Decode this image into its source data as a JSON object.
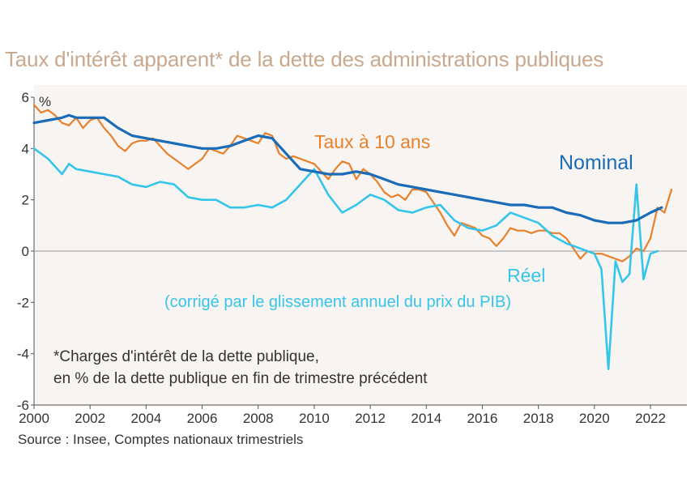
{
  "chart_data": {
    "type": "line",
    "title": "Taux d'intérêt apparent* de la dette des administrations publiques",
    "ylabel": "%",
    "ylim": [
      -6,
      6
    ],
    "xlim": [
      2000,
      2023.3
    ],
    "yticks": [
      -6,
      -4,
      -2,
      0,
      2,
      4,
      6
    ],
    "xticks": [
      2000,
      2002,
      2004,
      2006,
      2008,
      2010,
      2012,
      2014,
      2016,
      2018,
      2020,
      2022
    ],
    "footnote": [
      "*Charges d'intérêt de la dette publique,",
      "en % de la dette publique en fin de trimestre précédent"
    ],
    "source": "Source :  Insee, Comptes nationaux trimestriels",
    "colors": {
      "nominal": "#1a6bb8",
      "reel": "#35c4ea",
      "taux10": "#e8812c",
      "axis": "#555555",
      "plot_bg": "#f8f4f1"
    },
    "series": [
      {
        "name": "Taux à 10 ans",
        "label": "Taux à 10 ans",
        "color": "#e8812c",
        "points": [
          [
            2000.0,
            5.7
          ],
          [
            2000.25,
            5.4
          ],
          [
            2000.5,
            5.5
          ],
          [
            2000.75,
            5.3
          ],
          [
            2001.0,
            5.0
          ],
          [
            2001.25,
            4.9
          ],
          [
            2001.5,
            5.2
          ],
          [
            2001.75,
            4.8
          ],
          [
            2002.0,
            5.1
          ],
          [
            2002.25,
            5.2
          ],
          [
            2002.5,
            4.8
          ],
          [
            2002.75,
            4.5
          ],
          [
            2003.0,
            4.1
          ],
          [
            2003.25,
            3.9
          ],
          [
            2003.5,
            4.2
          ],
          [
            2003.75,
            4.3
          ],
          [
            2004.0,
            4.3
          ],
          [
            2004.25,
            4.4
          ],
          [
            2004.5,
            4.1
          ],
          [
            2004.75,
            3.8
          ],
          [
            2005.0,
            3.6
          ],
          [
            2005.25,
            3.4
          ],
          [
            2005.5,
            3.2
          ],
          [
            2005.75,
            3.4
          ],
          [
            2006.0,
            3.6
          ],
          [
            2006.25,
            4.0
          ],
          [
            2006.5,
            3.9
          ],
          [
            2006.75,
            3.8
          ],
          [
            2007.0,
            4.1
          ],
          [
            2007.25,
            4.5
          ],
          [
            2007.5,
            4.4
          ],
          [
            2007.75,
            4.3
          ],
          [
            2008.0,
            4.2
          ],
          [
            2008.25,
            4.6
          ],
          [
            2008.5,
            4.5
          ],
          [
            2008.75,
            3.8
          ],
          [
            2009.0,
            3.6
          ],
          [
            2009.25,
            3.7
          ],
          [
            2009.5,
            3.6
          ],
          [
            2009.75,
            3.5
          ],
          [
            2010.0,
            3.4
          ],
          [
            2010.25,
            3.1
          ],
          [
            2010.5,
            2.8
          ],
          [
            2010.75,
            3.2
          ],
          [
            2011.0,
            3.5
          ],
          [
            2011.25,
            3.4
          ],
          [
            2011.5,
            2.8
          ],
          [
            2011.75,
            3.2
          ],
          [
            2012.0,
            3.0
          ],
          [
            2012.25,
            2.7
          ],
          [
            2012.5,
            2.3
          ],
          [
            2012.75,
            2.1
          ],
          [
            2013.0,
            2.2
          ],
          [
            2013.25,
            2.0
          ],
          [
            2013.5,
            2.4
          ],
          [
            2013.75,
            2.4
          ],
          [
            2014.0,
            2.3
          ],
          [
            2014.25,
            1.9
          ],
          [
            2014.5,
            1.5
          ],
          [
            2014.75,
            1.0
          ],
          [
            2015.0,
            0.6
          ],
          [
            2015.25,
            1.1
          ],
          [
            2015.5,
            1.0
          ],
          [
            2015.75,
            0.9
          ],
          [
            2016.0,
            0.6
          ],
          [
            2016.25,
            0.5
          ],
          [
            2016.5,
            0.2
          ],
          [
            2016.75,
            0.5
          ],
          [
            2017.0,
            0.9
          ],
          [
            2017.25,
            0.8
          ],
          [
            2017.5,
            0.8
          ],
          [
            2017.75,
            0.7
          ],
          [
            2018.0,
            0.8
          ],
          [
            2018.25,
            0.8
          ],
          [
            2018.5,
            0.7
          ],
          [
            2018.75,
            0.7
          ],
          [
            2019.0,
            0.5
          ],
          [
            2019.25,
            0.1
          ],
          [
            2019.5,
            -0.3
          ],
          [
            2019.75,
            0.0
          ],
          [
            2020.0,
            -0.1
          ],
          [
            2020.25,
            -0.1
          ],
          [
            2020.5,
            -0.2
          ],
          [
            2020.75,
            -0.3
          ],
          [
            2021.0,
            -0.4
          ],
          [
            2021.25,
            -0.2
          ],
          [
            2021.5,
            0.1
          ],
          [
            2021.75,
            0.0
          ],
          [
            2022.0,
            0.5
          ],
          [
            2022.25,
            1.7
          ],
          [
            2022.5,
            1.5
          ],
          [
            2022.75,
            2.4
          ]
        ]
      },
      {
        "name": "Nominal",
        "label": "Nominal",
        "color": "#1a6bb8",
        "points": [
          [
            2000.0,
            5.0
          ],
          [
            2000.5,
            5.1
          ],
          [
            2001.0,
            5.2
          ],
          [
            2001.25,
            5.3
          ],
          [
            2001.5,
            5.2
          ],
          [
            2002.0,
            5.2
          ],
          [
            2002.5,
            5.2
          ],
          [
            2003.0,
            4.8
          ],
          [
            2003.5,
            4.5
          ],
          [
            2004.0,
            4.4
          ],
          [
            2004.5,
            4.3
          ],
          [
            2005.0,
            4.2
          ],
          [
            2005.5,
            4.1
          ],
          [
            2006.0,
            4.0
          ],
          [
            2006.5,
            4.0
          ],
          [
            2007.0,
            4.1
          ],
          [
            2007.5,
            4.3
          ],
          [
            2008.0,
            4.5
          ],
          [
            2008.5,
            4.4
          ],
          [
            2009.0,
            3.8
          ],
          [
            2009.5,
            3.2
          ],
          [
            2010.0,
            3.1
          ],
          [
            2010.5,
            3.0
          ],
          [
            2011.0,
            3.0
          ],
          [
            2011.5,
            3.1
          ],
          [
            2012.0,
            3.0
          ],
          [
            2012.5,
            2.8
          ],
          [
            2013.0,
            2.6
          ],
          [
            2013.5,
            2.5
          ],
          [
            2014.0,
            2.4
          ],
          [
            2014.5,
            2.3
          ],
          [
            2015.0,
            2.2
          ],
          [
            2015.5,
            2.1
          ],
          [
            2016.0,
            2.0
          ],
          [
            2016.5,
            1.9
          ],
          [
            2017.0,
            1.8
          ],
          [
            2017.5,
            1.8
          ],
          [
            2018.0,
            1.7
          ],
          [
            2018.5,
            1.7
          ],
          [
            2019.0,
            1.5
          ],
          [
            2019.5,
            1.4
          ],
          [
            2020.0,
            1.2
          ],
          [
            2020.5,
            1.1
          ],
          [
            2021.0,
            1.1
          ],
          [
            2021.5,
            1.2
          ],
          [
            2022.0,
            1.5
          ],
          [
            2022.4,
            1.7
          ]
        ]
      },
      {
        "name": "Réel",
        "label": "Réel",
        "sublabel": "(corrigé par le glissement annuel du prix du PIB)",
        "color": "#35c4ea",
        "points": [
          [
            2000.0,
            4.0
          ],
          [
            2000.5,
            3.6
          ],
          [
            2001.0,
            3.0
          ],
          [
            2001.25,
            3.4
          ],
          [
            2001.5,
            3.2
          ],
          [
            2002.0,
            3.1
          ],
          [
            2002.5,
            3.0
          ],
          [
            2003.0,
            2.9
          ],
          [
            2003.5,
            2.6
          ],
          [
            2004.0,
            2.5
          ],
          [
            2004.5,
            2.7
          ],
          [
            2005.0,
            2.6
          ],
          [
            2005.5,
            2.1
          ],
          [
            2006.0,
            2.0
          ],
          [
            2006.5,
            2.0
          ],
          [
            2007.0,
            1.7
          ],
          [
            2007.5,
            1.7
          ],
          [
            2008.0,
            1.8
          ],
          [
            2008.5,
            1.7
          ],
          [
            2009.0,
            2.0
          ],
          [
            2009.5,
            2.6
          ],
          [
            2010.0,
            3.2
          ],
          [
            2010.5,
            2.2
          ],
          [
            2011.0,
            1.5
          ],
          [
            2011.5,
            1.8
          ],
          [
            2012.0,
            2.2
          ],
          [
            2012.5,
            2.0
          ],
          [
            2013.0,
            1.6
          ],
          [
            2013.5,
            1.5
          ],
          [
            2014.0,
            1.7
          ],
          [
            2014.5,
            1.8
          ],
          [
            2015.0,
            1.2
          ],
          [
            2015.5,
            0.9
          ],
          [
            2016.0,
            0.8
          ],
          [
            2016.5,
            1.0
          ],
          [
            2017.0,
            1.5
          ],
          [
            2017.5,
            1.3
          ],
          [
            2018.0,
            1.1
          ],
          [
            2018.5,
            0.6
          ],
          [
            2019.0,
            0.3
          ],
          [
            2019.5,
            0.1
          ],
          [
            2020.0,
            -0.1
          ],
          [
            2020.25,
            -0.7
          ],
          [
            2020.5,
            -4.6
          ],
          [
            2020.75,
            -0.4
          ],
          [
            2021.0,
            -1.2
          ],
          [
            2021.25,
            -0.9
          ],
          [
            2021.5,
            2.6
          ],
          [
            2021.75,
            -1.1
          ],
          [
            2022.0,
            -0.1
          ],
          [
            2022.25,
            0.0
          ]
        ]
      }
    ]
  }
}
